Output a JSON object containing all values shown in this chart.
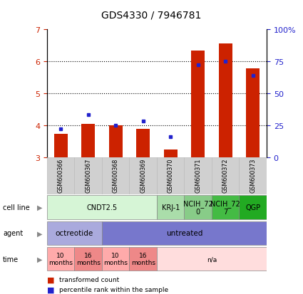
{
  "title": "GDS4330 / 7946781",
  "samples": [
    "GSM600366",
    "GSM600367",
    "GSM600368",
    "GSM600369",
    "GSM600370",
    "GSM600371",
    "GSM600372",
    "GSM600373"
  ],
  "bar_values": [
    3.73,
    4.05,
    4.0,
    3.88,
    3.25,
    6.32,
    6.55,
    5.78
  ],
  "percentile_values": [
    3.88,
    4.32,
    4.0,
    4.12,
    3.65,
    5.88,
    6.0,
    5.55
  ],
  "ylim": [
    3.0,
    7.0
  ],
  "y_left_ticks": [
    3,
    4,
    5,
    6,
    7
  ],
  "y_right_ticks": [
    "0",
    "25",
    "50",
    "75",
    "100%"
  ],
  "y_right_tick_positions": [
    3.0,
    4.0,
    5.0,
    6.0,
    7.0
  ],
  "bar_color": "#cc2200",
  "percentile_color": "#2222cc",
  "cell_line_groups": [
    {
      "label": "CNDT2.5",
      "start": 0,
      "end": 4,
      "color": "#d6f5d6"
    },
    {
      "label": "KRJ-1",
      "start": 4,
      "end": 5,
      "color": "#aaddaa"
    },
    {
      "label": "NCIH_72\n0",
      "start": 5,
      "end": 6,
      "color": "#88cc88"
    },
    {
      "label": "NCIH_72\n7",
      "start": 6,
      "end": 7,
      "color": "#44bb44"
    },
    {
      "label": "QGP",
      "start": 7,
      "end": 8,
      "color": "#22aa22"
    }
  ],
  "agent_groups": [
    {
      "label": "octreotide",
      "start": 0,
      "end": 2,
      "color": "#aaaadd"
    },
    {
      "label": "untreated",
      "start": 2,
      "end": 8,
      "color": "#7777cc"
    }
  ],
  "time_groups": [
    {
      "label": "10\nmonths",
      "start": 0,
      "end": 1,
      "color": "#ffaaaa"
    },
    {
      "label": "16\nmonths",
      "start": 1,
      "end": 2,
      "color": "#ee8888"
    },
    {
      "label": "10\nmonths",
      "start": 2,
      "end": 3,
      "color": "#ffaaaa"
    },
    {
      "label": "16\nmonths",
      "start": 3,
      "end": 4,
      "color": "#ee8888"
    },
    {
      "label": "n/a",
      "start": 4,
      "end": 8,
      "color": "#ffdddd"
    }
  ],
  "row_labels": [
    "cell line",
    "agent",
    "time"
  ],
  "legend_items": [
    {
      "label": "transformed count",
      "color": "#cc2200"
    },
    {
      "label": "percentile rank within the sample",
      "color": "#2222cc"
    }
  ],
  "tick_color_left": "#cc2200",
  "tick_color_right": "#2222cc",
  "sample_box_color": "#d0d0d0",
  "sample_box_edge": "#bbbbbb"
}
